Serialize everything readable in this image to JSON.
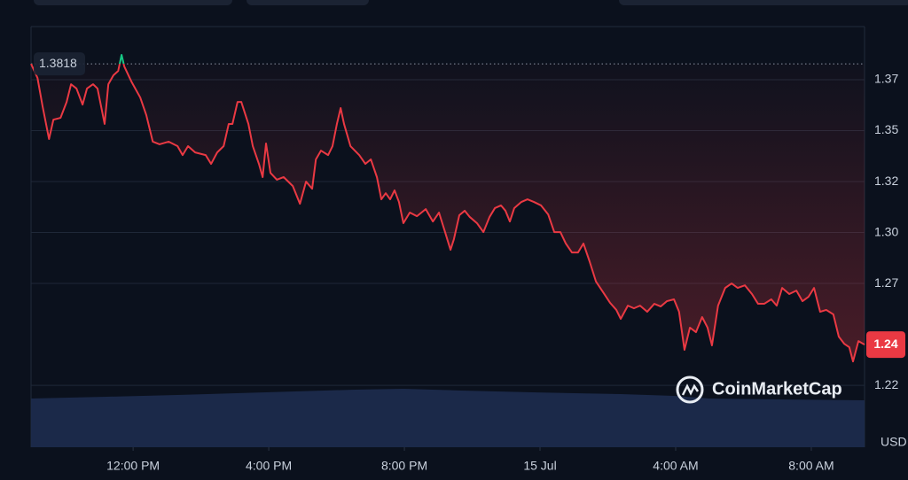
{
  "chart_data": {
    "type": "line",
    "color": "#ea3943",
    "up_color": "#16c784",
    "baseline": 1.3818,
    "last_price": {
      "value": 1.244,
      "label": "1.24"
    },
    "y_unit": "USD",
    "watermark": "CoinMarketCap",
    "xlim": [
      -3.01,
      21.57
    ],
    "ylim": [
      1.1936,
      1.4001
    ],
    "xticks": [
      {
        "value": 0,
        "label": "12:00 PM"
      },
      {
        "value": 4,
        "label": "4:00 PM"
      },
      {
        "value": 8,
        "label": "8:00 PM"
      },
      {
        "value": 12,
        "label": "15 Jul"
      },
      {
        "value": 16,
        "label": "4:00 AM"
      },
      {
        "value": 20,
        "label": "8:00 AM"
      }
    ],
    "yticks": [
      {
        "value": 1.374,
        "label": "1.37"
      },
      {
        "value": 1.349,
        "label": "1.35"
      },
      {
        "value": 1.324,
        "label": "1.32"
      },
      {
        "value": 1.299,
        "label": "1.30"
      },
      {
        "value": 1.274,
        "label": "1.27"
      },
      {
        "value": 1.224,
        "label": "1.22"
      }
    ],
    "grid": true,
    "x": [
      -3.01,
      -2.82,
      -2.67,
      -2.48,
      -2.35,
      -2.14,
      -1.96,
      -1.83,
      -1.67,
      -1.49,
      -1.36,
      -1.18,
      -1.05,
      -0.84,
      -0.73,
      -0.58,
      -0.44,
      -0.34,
      -0.26,
      -0.05,
      0.21,
      0.39,
      0.58,
      0.78,
      1.05,
      1.31,
      1.46,
      1.62,
      1.83,
      2.14,
      2.3,
      2.48,
      2.67,
      2.82,
      2.93,
      3.08,
      3.19,
      3.4,
      3.53,
      3.71,
      3.82,
      3.92,
      4.05,
      4.24,
      4.44,
      4.71,
      4.92,
      5.1,
      5.28,
      5.39,
      5.54,
      5.75,
      5.88,
      6.01,
      6.12,
      6.22,
      6.41,
      6.67,
      6.85,
      7.01,
      7.19,
      7.32,
      7.45,
      7.58,
      7.71,
      7.84,
      7.97,
      8.16,
      8.37,
      8.63,
      8.84,
      9.02,
      9.2,
      9.36,
      9.46,
      9.62,
      9.78,
      9.93,
      10.14,
      10.33,
      10.51,
      10.67,
      10.85,
      10.98,
      11.11,
      11.24,
      11.45,
      11.63,
      11.82,
      12.03,
      12.24,
      12.42,
      12.6,
      12.76,
      12.94,
      13.12,
      13.28,
      13.46,
      13.65,
      13.86,
      14.07,
      14.25,
      14.38,
      14.59,
      14.77,
      14.95,
      15.16,
      15.37,
      15.56,
      15.74,
      15.95,
      16.1,
      16.26,
      16.42,
      16.6,
      16.78,
      16.94,
      17.07,
      17.25,
      17.46,
      17.65,
      17.83,
      18.04,
      18.25,
      18.43,
      18.61,
      18.82,
      18.98,
      19.14,
      19.35,
      19.56,
      19.74,
      19.92,
      20.08,
      20.26,
      20.44,
      20.65,
      20.81,
      20.97,
      21.12,
      21.23,
      21.39,
      21.57
    ],
    "values": [
      1.3818,
      1.3749,
      1.361,
      1.3449,
      1.3544,
      1.3553,
      1.3631,
      1.3718,
      1.3697,
      1.3618,
      1.3697,
      1.3718,
      1.3697,
      1.3523,
      1.3718,
      1.3762,
      1.3783,
      1.3862,
      1.3805,
      1.3731,
      1.3653,
      1.3566,
      1.3436,
      1.3423,
      1.3436,
      1.3414,
      1.337,
      1.3414,
      1.3383,
      1.337,
      1.3327,
      1.3383,
      1.3414,
      1.3523,
      1.3523,
      1.3631,
      1.3631,
      1.3523,
      1.3414,
      1.3327,
      1.3262,
      1.3427,
      1.3283,
      1.3249,
      1.3262,
      1.3218,
      1.3131,
      1.324,
      1.3205,
      1.3349,
      1.3392,
      1.337,
      1.3414,
      1.3523,
      1.3601,
      1.3523,
      1.3414,
      1.337,
      1.3327,
      1.3349,
      1.3262,
      1.3153,
      1.3183,
      1.3153,
      1.3197,
      1.314,
      1.3036,
      1.3088,
      1.307,
      1.3105,
      1.3044,
      1.3088,
      1.2992,
      1.2905,
      1.2957,
      1.3075,
      1.3097,
      1.3066,
      1.3036,
      1.2992,
      1.3066,
      1.311,
      1.3123,
      1.3097,
      1.3044,
      1.311,
      1.314,
      1.3153,
      1.314,
      1.3123,
      1.3079,
      1.2992,
      1.2992,
      1.2936,
      1.2892,
      1.2892,
      1.2936,
      1.2849,
      1.2749,
      1.2697,
      1.2644,
      1.261,
      1.2566,
      1.2631,
      1.2618,
      1.2631,
      1.2601,
      1.264,
      1.2627,
      1.2653,
      1.2662,
      1.2601,
      1.2414,
      1.2523,
      1.2501,
      1.2575,
      1.2523,
      1.2436,
      1.2631,
      1.2718,
      1.274,
      1.2718,
      1.2731,
      1.2688,
      1.264,
      1.264,
      1.2662,
      1.2631,
      1.2718,
      1.2688,
      1.2705,
      1.2653,
      1.2675,
      1.2718,
      1.2601,
      1.261,
      1.2588,
      1.2479,
      1.2444,
      1.2427,
      1.2357,
      1.2457,
      1.244
    ]
  }
}
